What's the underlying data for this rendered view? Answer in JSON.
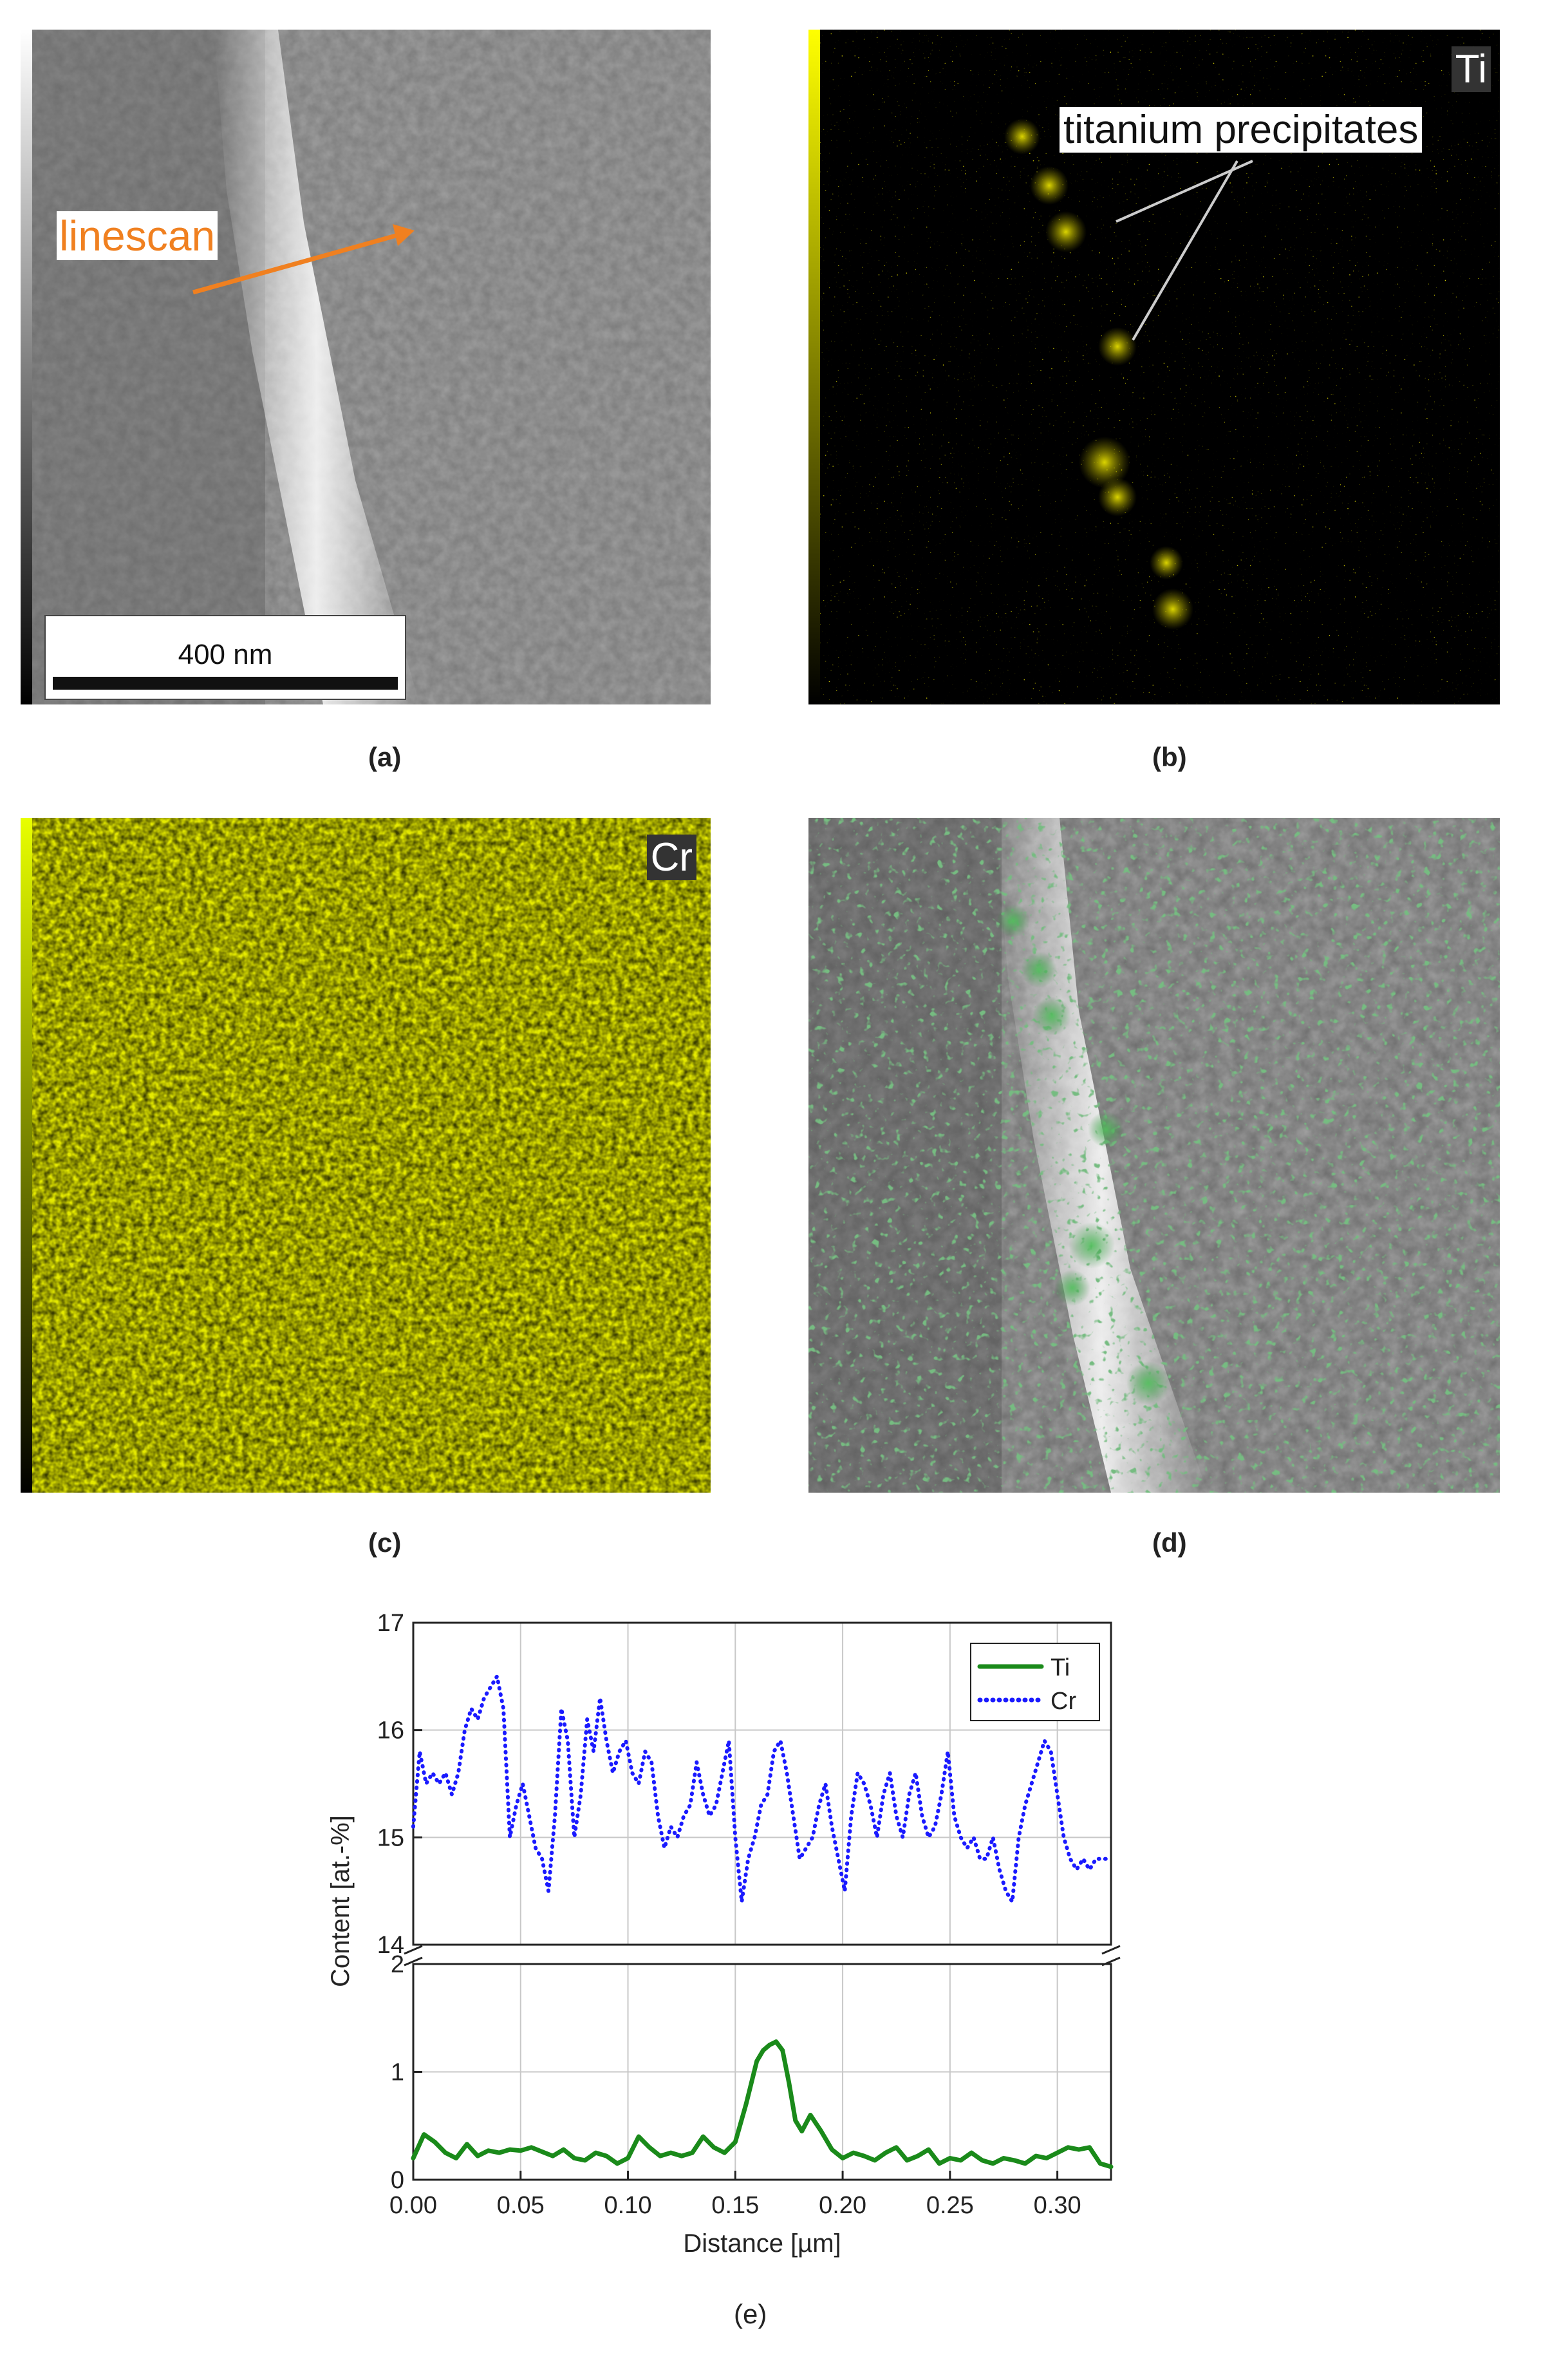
{
  "panels": {
    "a": {
      "caption": "(a)",
      "annotation": "linescan",
      "scalebar": "400 nm"
    },
    "b": {
      "caption": "(b)",
      "element": "Ti",
      "annotation": "titanium precipitates"
    },
    "c": {
      "caption": "(c)",
      "element": "Cr"
    },
    "d": {
      "caption": "(d)"
    },
    "e": {
      "caption": "(e)"
    }
  },
  "colors": {
    "ti_line": "#1a8a1a",
    "cr_line": "#1a1aff",
    "ti_map": "#c8c000",
    "cr_map": "#b8c400",
    "overlay_green": "#2e8b3a",
    "arrow": "#f08020"
  },
  "chart_data": {
    "type": "line",
    "xlabel": "Distance [µm]",
    "ylabel": "Content [at.-%]",
    "xlim": [
      0,
      0.325
    ],
    "x_ticks": [
      "0.00",
      "0.05",
      "0.10",
      "0.15",
      "0.20",
      "0.25",
      "0.30"
    ],
    "upper_ylim": [
      14,
      17
    ],
    "upper_y_ticks": [
      "14",
      "15",
      "16",
      "17"
    ],
    "lower_ylim": [
      0,
      2
    ],
    "lower_y_ticks": [
      "0",
      "1",
      "2"
    ],
    "axis_break": true,
    "grid": true,
    "legend_position": "top-right",
    "series": [
      {
        "name": "Ti",
        "style": "solid",
        "color": "#1a8a1a",
        "x": [
          0.0,
          0.005,
          0.01,
          0.015,
          0.02,
          0.025,
          0.03,
          0.035,
          0.04,
          0.045,
          0.05,
          0.055,
          0.06,
          0.065,
          0.07,
          0.075,
          0.08,
          0.085,
          0.09,
          0.095,
          0.1,
          0.105,
          0.11,
          0.115,
          0.12,
          0.125,
          0.13,
          0.135,
          0.14,
          0.145,
          0.15,
          0.155,
          0.16,
          0.163,
          0.166,
          0.169,
          0.172,
          0.175,
          0.178,
          0.181,
          0.185,
          0.19,
          0.195,
          0.2,
          0.205,
          0.21,
          0.215,
          0.22,
          0.225,
          0.23,
          0.235,
          0.24,
          0.245,
          0.25,
          0.255,
          0.26,
          0.265,
          0.27,
          0.275,
          0.28,
          0.285,
          0.29,
          0.295,
          0.3,
          0.305,
          0.31,
          0.315,
          0.32,
          0.325
        ],
        "values": [
          0.2,
          0.42,
          0.35,
          0.25,
          0.2,
          0.33,
          0.22,
          0.27,
          0.25,
          0.28,
          0.27,
          0.3,
          0.26,
          0.22,
          0.28,
          0.2,
          0.18,
          0.25,
          0.22,
          0.15,
          0.2,
          0.4,
          0.3,
          0.22,
          0.25,
          0.22,
          0.25,
          0.4,
          0.3,
          0.25,
          0.35,
          0.7,
          1.1,
          1.2,
          1.25,
          1.28,
          1.2,
          0.9,
          0.55,
          0.45,
          0.6,
          0.45,
          0.28,
          0.2,
          0.25,
          0.22,
          0.18,
          0.25,
          0.3,
          0.18,
          0.22,
          0.28,
          0.15,
          0.2,
          0.18,
          0.25,
          0.18,
          0.15,
          0.2,
          0.18,
          0.15,
          0.22,
          0.2,
          0.25,
          0.3,
          0.28,
          0.3,
          0.15,
          0.12
        ]
      },
      {
        "name": "Cr",
        "style": "dotted",
        "color": "#1a1aff",
        "x": [
          0.0,
          0.003,
          0.006,
          0.009,
          0.012,
          0.015,
          0.018,
          0.021,
          0.024,
          0.027,
          0.03,
          0.033,
          0.036,
          0.039,
          0.042,
          0.045,
          0.048,
          0.051,
          0.054,
          0.057,
          0.06,
          0.063,
          0.066,
          0.069,
          0.072,
          0.075,
          0.078,
          0.081,
          0.084,
          0.087,
          0.09,
          0.093,
          0.096,
          0.099,
          0.102,
          0.105,
          0.108,
          0.111,
          0.114,
          0.117,
          0.12,
          0.123,
          0.126,
          0.129,
          0.132,
          0.135,
          0.138,
          0.141,
          0.144,
          0.147,
          0.15,
          0.153,
          0.156,
          0.159,
          0.162,
          0.165,
          0.168,
          0.171,
          0.174,
          0.177,
          0.18,
          0.183,
          0.186,
          0.189,
          0.192,
          0.195,
          0.198,
          0.201,
          0.204,
          0.207,
          0.21,
          0.213,
          0.216,
          0.219,
          0.222,
          0.225,
          0.228,
          0.231,
          0.234,
          0.237,
          0.24,
          0.243,
          0.246,
          0.249,
          0.252,
          0.255,
          0.258,
          0.261,
          0.264,
          0.267,
          0.27,
          0.273,
          0.276,
          0.279,
          0.282,
          0.285,
          0.288,
          0.291,
          0.294,
          0.297,
          0.3,
          0.303,
          0.306,
          0.309,
          0.312,
          0.315,
          0.318,
          0.321,
          0.324
        ],
        "values": [
          15.1,
          15.8,
          15.5,
          15.6,
          15.5,
          15.6,
          15.4,
          15.6,
          16.0,
          16.2,
          16.1,
          16.3,
          16.4,
          16.5,
          16.2,
          15.0,
          15.3,
          15.5,
          15.2,
          14.9,
          14.8,
          14.5,
          15.2,
          16.2,
          15.9,
          15.0,
          15.4,
          16.1,
          15.8,
          16.3,
          15.9,
          15.6,
          15.8,
          15.9,
          15.6,
          15.5,
          15.8,
          15.7,
          15.2,
          14.9,
          15.1,
          15.0,
          15.2,
          15.3,
          15.7,
          15.4,
          15.2,
          15.3,
          15.6,
          15.9,
          15.0,
          14.4,
          14.8,
          15.0,
          15.3,
          15.4,
          15.8,
          15.9,
          15.6,
          15.2,
          14.8,
          14.9,
          15.0,
          15.3,
          15.5,
          15.1,
          14.8,
          14.5,
          15.2,
          15.6,
          15.5,
          15.3,
          15.0,
          15.4,
          15.6,
          15.2,
          15.0,
          15.4,
          15.6,
          15.2,
          15.0,
          15.1,
          15.4,
          15.8,
          15.2,
          15.0,
          14.9,
          15.0,
          14.8,
          14.8,
          15.0,
          14.7,
          14.5,
          14.4,
          15.0,
          15.3,
          15.5,
          15.7,
          15.9,
          15.8,
          15.4,
          15.0,
          14.8,
          14.7,
          14.8,
          14.7,
          14.8,
          14.8,
          14.8
        ]
      }
    ]
  }
}
